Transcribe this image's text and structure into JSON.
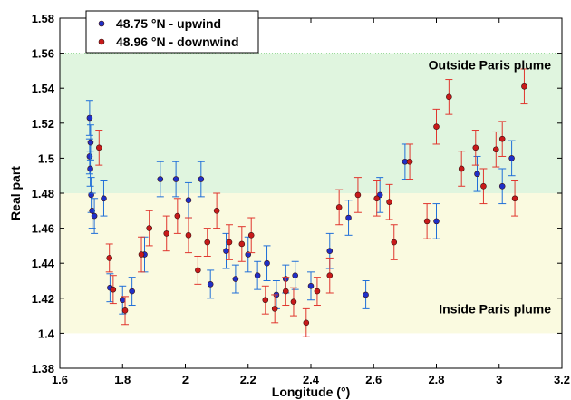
{
  "chart_data": {
    "type": "scatter",
    "title": "",
    "xlabel": "Longitude (°)",
    "ylabel": "Real part",
    "xlim": [
      1.6,
      3.2
    ],
    "ylim": [
      1.38,
      1.58
    ],
    "xticks": [
      "1.6",
      "1.8",
      "2",
      "2.2",
      "2.4",
      "2.6",
      "2.8",
      "3",
      "3.2"
    ],
    "yticks": [
      "1.38",
      "1.4",
      "1.42",
      "1.44",
      "1.46",
      "1.48",
      "1.5",
      "1.52",
      "1.54",
      "1.56",
      "1.58"
    ],
    "grid": false,
    "legend_position": "top-left",
    "bands": [
      {
        "label": "Outside Paris plume",
        "y0": 1.48,
        "y1": 1.56,
        "color": "#e0f5df"
      },
      {
        "label": "Inside Paris plume",
        "y0": 1.4,
        "y1": 1.48,
        "color": "#fafae0"
      }
    ],
    "series": [
      {
        "name": "48.75 °N - upwind",
        "color": "#1f2fc8",
        "error_color": "#1f6fd8",
        "points": [
          {
            "x": 1.695,
            "y": 1.523,
            "err": 0.01
          },
          {
            "x": 1.695,
            "y": 1.501,
            "err": 0.01
          },
          {
            "x": 1.697,
            "y": 1.494,
            "err": 0.01
          },
          {
            "x": 1.698,
            "y": 1.509,
            "err": 0.01
          },
          {
            "x": 1.7,
            "y": 1.479,
            "err": 0.01
          },
          {
            "x": 1.703,
            "y": 1.47,
            "err": 0.01
          },
          {
            "x": 1.71,
            "y": 1.467,
            "err": 0.01
          },
          {
            "x": 1.74,
            "y": 1.477,
            "err": 0.01
          },
          {
            "x": 1.76,
            "y": 1.426,
            "err": 0.008
          },
          {
            "x": 1.8,
            "y": 1.419,
            "err": 0.008
          },
          {
            "x": 1.83,
            "y": 1.424,
            "err": 0.008
          },
          {
            "x": 1.87,
            "y": 1.445,
            "err": 0.01
          },
          {
            "x": 1.92,
            "y": 1.488,
            "err": 0.01
          },
          {
            "x": 1.97,
            "y": 1.488,
            "err": 0.01
          },
          {
            "x": 2.01,
            "y": 1.476,
            "err": 0.01
          },
          {
            "x": 2.05,
            "y": 1.488,
            "err": 0.01
          },
          {
            "x": 2.08,
            "y": 1.428,
            "err": 0.008
          },
          {
            "x": 2.13,
            "y": 1.447,
            "err": 0.01
          },
          {
            "x": 2.16,
            "y": 1.431,
            "err": 0.008
          },
          {
            "x": 2.2,
            "y": 1.445,
            "err": 0.01
          },
          {
            "x": 2.23,
            "y": 1.433,
            "err": 0.008
          },
          {
            "x": 2.26,
            "y": 1.44,
            "err": 0.01
          },
          {
            "x": 2.29,
            "y": 1.422,
            "err": 0.008
          },
          {
            "x": 2.32,
            "y": 1.431,
            "err": 0.008
          },
          {
            "x": 2.35,
            "y": 1.433,
            "err": 0.008
          },
          {
            "x": 2.4,
            "y": 1.427,
            "err": 0.008
          },
          {
            "x": 2.46,
            "y": 1.447,
            "err": 0.01
          },
          {
            "x": 2.52,
            "y": 1.466,
            "err": 0.01
          },
          {
            "x": 2.575,
            "y": 1.422,
            "err": 0.008
          },
          {
            "x": 2.62,
            "y": 1.479,
            "err": 0.01
          },
          {
            "x": 2.7,
            "y": 1.498,
            "err": 0.01
          },
          {
            "x": 2.8,
            "y": 1.464,
            "err": 0.01
          },
          {
            "x": 2.93,
            "y": 1.491,
            "err": 0.01
          },
          {
            "x": 3.01,
            "y": 1.484,
            "err": 0.01
          },
          {
            "x": 3.04,
            "y": 1.5,
            "err": 0.01
          }
        ]
      },
      {
        "name": "48.96 °N - downwind",
        "color": "#c81a1a",
        "error_color": "#e0362e",
        "points": [
          {
            "x": 1.725,
            "y": 1.506,
            "err": 0.01
          },
          {
            "x": 1.758,
            "y": 1.443,
            "err": 0.008
          },
          {
            "x": 1.77,
            "y": 1.425,
            "err": 0.008
          },
          {
            "x": 1.808,
            "y": 1.413,
            "err": 0.008
          },
          {
            "x": 1.86,
            "y": 1.445,
            "err": 0.01
          },
          {
            "x": 1.885,
            "y": 1.46,
            "err": 0.01
          },
          {
            "x": 1.94,
            "y": 1.457,
            "err": 0.01
          },
          {
            "x": 1.975,
            "y": 1.467,
            "err": 0.01
          },
          {
            "x": 2.01,
            "y": 1.456,
            "err": 0.01
          },
          {
            "x": 2.04,
            "y": 1.436,
            "err": 0.008
          },
          {
            "x": 2.07,
            "y": 1.452,
            "err": 0.008
          },
          {
            "x": 2.1,
            "y": 1.47,
            "err": 0.01
          },
          {
            "x": 2.14,
            "y": 1.452,
            "err": 0.01
          },
          {
            "x": 2.18,
            "y": 1.451,
            "err": 0.01
          },
          {
            "x": 2.21,
            "y": 1.456,
            "err": 0.01
          },
          {
            "x": 2.255,
            "y": 1.419,
            "err": 0.008
          },
          {
            "x": 2.285,
            "y": 1.414,
            "err": 0.008
          },
          {
            "x": 2.32,
            "y": 1.424,
            "err": 0.008
          },
          {
            "x": 2.345,
            "y": 1.418,
            "err": 0.008
          },
          {
            "x": 2.385,
            "y": 1.406,
            "err": 0.008
          },
          {
            "x": 2.42,
            "y": 1.424,
            "err": 0.008
          },
          {
            "x": 2.46,
            "y": 1.433,
            "err": 0.01
          },
          {
            "x": 2.49,
            "y": 1.472,
            "err": 0.01
          },
          {
            "x": 2.55,
            "y": 1.479,
            "err": 0.01
          },
          {
            "x": 2.61,
            "y": 1.477,
            "err": 0.01
          },
          {
            "x": 2.65,
            "y": 1.475,
            "err": 0.01
          },
          {
            "x": 2.665,
            "y": 1.452,
            "err": 0.01
          },
          {
            "x": 2.715,
            "y": 1.498,
            "err": 0.01
          },
          {
            "x": 2.77,
            "y": 1.464,
            "err": 0.01
          },
          {
            "x": 2.8,
            "y": 1.518,
            "err": 0.01
          },
          {
            "x": 2.84,
            "y": 1.535,
            "err": 0.01
          },
          {
            "x": 2.88,
            "y": 1.494,
            "err": 0.01
          },
          {
            "x": 2.925,
            "y": 1.506,
            "err": 0.01
          },
          {
            "x": 2.95,
            "y": 1.484,
            "err": 0.01
          },
          {
            "x": 2.99,
            "y": 1.505,
            "err": 0.01
          },
          {
            "x": 3.01,
            "y": 1.511,
            "err": 0.01
          },
          {
            "x": 3.05,
            "y": 1.477,
            "err": 0.01
          },
          {
            "x": 3.08,
            "y": 1.541,
            "err": 0.01
          }
        ]
      }
    ]
  }
}
